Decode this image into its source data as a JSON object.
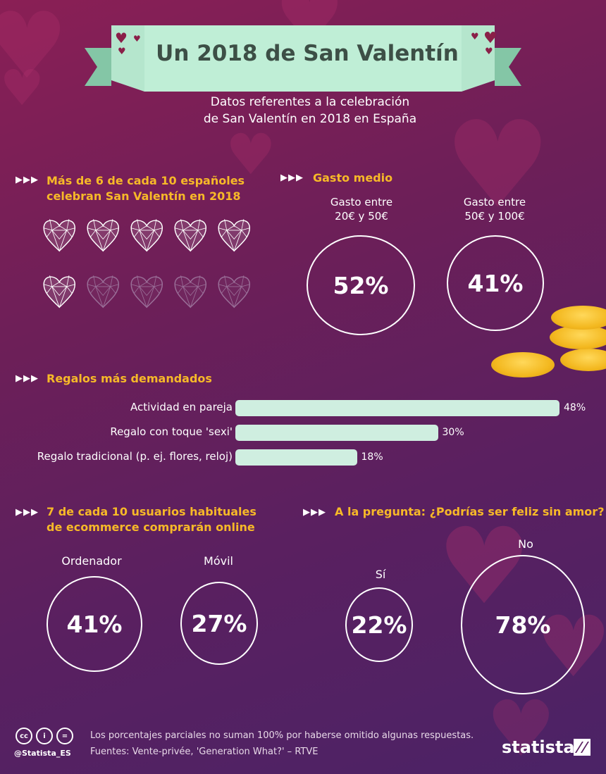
{
  "title": "Un 2018 de San Valentín",
  "subtitle": [
    "Datos referentes a la celebración",
    "de San Valentín en 2018 en España"
  ],
  "colors": {
    "accent": "#f7b928",
    "ribbon": "#a8dfc3",
    "bar": "#cfeee0"
  },
  "sections": {
    "celebrate": {
      "heading": [
        "Más de 6 de cada 10 españoles",
        "celebran San Valentín en 2018"
      ],
      "filled": 6,
      "total": 10,
      "icon": "diamond-heart-icon"
    },
    "spend": {
      "heading": "Gasto medio",
      "items": [
        {
          "label": [
            "Gasto entre",
            "20€ y 50€"
          ],
          "value": "52%"
        },
        {
          "label": [
            "Gasto entre",
            "50€ y 100€"
          ],
          "value": "41%"
        }
      ]
    },
    "gifts": {
      "heading": "Regalos más demandados"
    },
    "ecommerce": {
      "heading": [
        "7 de cada 10 usuarios habituales",
        "de ecommerce comprarán online"
      ],
      "items": [
        {
          "label": "Ordenador",
          "value": "41%"
        },
        {
          "label": "Móvil",
          "value": "27%"
        }
      ]
    },
    "love": {
      "heading": "A la pregunta: ¿Podrías ser feliz sin amor?",
      "items": [
        {
          "label": "Sí",
          "value": "22%"
        },
        {
          "label": "No",
          "value": "78%"
        }
      ]
    }
  },
  "chart_data": {
    "type": "bar",
    "orientation": "horizontal",
    "title": "Regalos más demandados",
    "categories": [
      "Actividad en pareja",
      "Regalo con toque 'sexi'",
      "Regalo tradicional (p. ej. flores, reloj)"
    ],
    "values": [
      48,
      30,
      18
    ],
    "value_labels": [
      "48%",
      "30%",
      "18%"
    ],
    "xlim": [
      0,
      48
    ]
  },
  "footer": {
    "note": "Los porcentajes parciales no suman 100% por haberse omitido algunas respuestas.",
    "sources": "Fuentes: Vente-privée, 'Generation What?' – RTVE",
    "handle": "@Statista_ES",
    "brand": "statista",
    "license_icons": [
      "cc",
      "i",
      "="
    ]
  }
}
